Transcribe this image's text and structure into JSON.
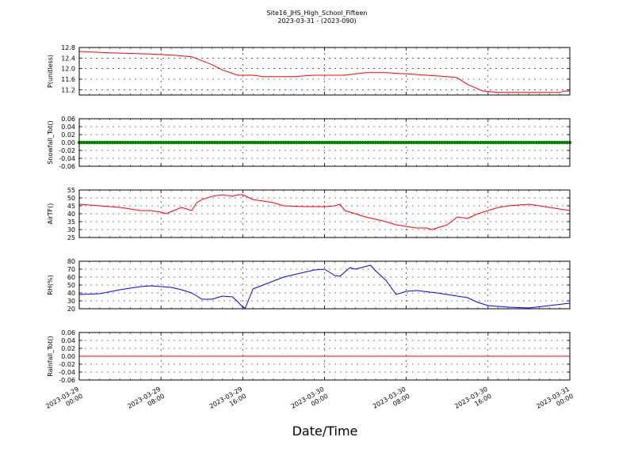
{
  "figure": {
    "title_line1": "Site16_JHS_High_School_Fifteen",
    "title_line2": "2023-03-31 - (2023-090)",
    "xlabel": "Date/Time"
  },
  "x_axis": {
    "start": "2023-03-29 00:00",
    "end": "2023-03-31 00:00",
    "ticks": [
      {
        "value": "2023-03-29 00:00",
        "line1": "2023-03-29",
        "line2": "00:00"
      },
      {
        "value": "2023-03-29 08:00",
        "line1": "2023-03-29",
        "line2": "08:00"
      },
      {
        "value": "2023-03-29 16:00",
        "line1": "2023-03-29",
        "line2": "16:00"
      },
      {
        "value": "2023-03-30 00:00",
        "line1": "2023-03-30",
        "line2": "00:00"
      },
      {
        "value": "2023-03-30 08:00",
        "line1": "2023-03-30",
        "line2": "08:00"
      },
      {
        "value": "2023-03-30 16:00",
        "line1": "2023-03-30",
        "line2": "16:00"
      },
      {
        "value": "2023-03-31 00:00",
        "line1": "2023-03-31",
        "line2": "00:00"
      }
    ]
  },
  "chart_data": [
    {
      "type": "line",
      "ylabel": "P(unitless)",
      "ylim": [
        11.0,
        12.8
      ],
      "yticks": [
        11.2,
        11.6,
        12.0,
        12.4,
        12.8
      ],
      "tick_decimals": 1,
      "grid": true,
      "color": "#ff0000",
      "x": [
        "2023-03-29 00:00",
        "2023-03-29 03:00",
        "2023-03-29 07:00",
        "2023-03-29 09:30",
        "2023-03-29 11:00",
        "2023-03-29 12:00",
        "2023-03-29 13:00",
        "2023-03-29 14:00",
        "2023-03-29 15:30",
        "2023-03-29 17:00",
        "2023-03-29 18:00",
        "2023-03-29 21:00",
        "2023-03-29 23:00",
        "2023-03-30 02:00",
        "2023-03-30 04:00",
        "2023-03-30 06:00",
        "2023-03-30 08:00",
        "2023-03-30 10:00",
        "2023-03-30 12:00",
        "2023-03-30 13:00",
        "2023-03-30 14:00",
        "2023-03-30 15:30",
        "2023-03-30 17:00",
        "2023-03-30 20:00",
        "2023-03-30 23:00",
        "2023-03-30 23:30",
        "2023-03-31 00:00"
      ],
      "y": [
        12.65,
        12.6,
        12.55,
        12.5,
        12.45,
        12.3,
        12.15,
        11.95,
        11.75,
        11.75,
        11.7,
        11.7,
        11.75,
        11.75,
        11.85,
        11.85,
        11.8,
        11.75,
        11.7,
        11.65,
        11.4,
        11.15,
        11.1,
        11.1,
        11.1,
        11.15,
        11.15
      ]
    },
    {
      "type": "scatter",
      "ylabel": "Snowfall_Tot()",
      "ylim": [
        -0.06,
        0.06
      ],
      "yticks": [
        -0.06,
        -0.04,
        -0.02,
        0.0,
        0.02,
        0.04,
        0.06
      ],
      "tick_decimals": 2,
      "grid": true,
      "color": "#007f00",
      "constant_value": 0.0,
      "x_step_minutes": 15
    },
    {
      "type": "line",
      "ylabel": "AirTF()",
      "ylim": [
        25,
        55
      ],
      "yticks": [
        25,
        30,
        35,
        40,
        45,
        50,
        55
      ],
      "tick_decimals": 0,
      "grid": true,
      "color": "#ff0000",
      "x": [
        "2023-03-29 00:00",
        "2023-03-29 02:00",
        "2023-03-29 04:00",
        "2023-03-29 05:00",
        "2023-03-29 06:00",
        "2023-03-29 07:00",
        "2023-03-29 08:00",
        "2023-03-29 08:30",
        "2023-03-29 10:00",
        "2023-03-29 11:00",
        "2023-03-29 11:30",
        "2023-03-29 12:00",
        "2023-03-29 13:00",
        "2023-03-29 14:00",
        "2023-03-29 15:00",
        "2023-03-29 15:30",
        "2023-03-29 16:00",
        "2023-03-29 17:00",
        "2023-03-29 18:00",
        "2023-03-29 19:00",
        "2023-03-29 20:00",
        "2023-03-29 22:00",
        "2023-03-30 00:00",
        "2023-03-30 01:00",
        "2023-03-30 01:30",
        "2023-03-30 02:00",
        "2023-03-30 03:00",
        "2023-03-30 04:00",
        "2023-03-30 06:00",
        "2023-03-30 07:00",
        "2023-03-30 08:00",
        "2023-03-30 09:00",
        "2023-03-30 10:00",
        "2023-03-30 10:30",
        "2023-03-30 11:00",
        "2023-03-30 12:00",
        "2023-03-30 13:00",
        "2023-03-30 14:00",
        "2023-03-30 15:00",
        "2023-03-30 16:00",
        "2023-03-30 17:00",
        "2023-03-30 18:00",
        "2023-03-30 20:00",
        "2023-03-30 22:00",
        "2023-03-31 00:00"
      ],
      "y": [
        46,
        45,
        44,
        43,
        42,
        42,
        41,
        40,
        44,
        42,
        47,
        49,
        51,
        52,
        51,
        52,
        52,
        49,
        48,
        47,
        45,
        44.5,
        44.5,
        45,
        46,
        42,
        40,
        38,
        35,
        33,
        32,
        31,
        31,
        30,
        31,
        33,
        38,
        37,
        40,
        42,
        44,
        45,
        46,
        44,
        42
      ]
    },
    {
      "type": "line",
      "ylabel": "RH(%)",
      "ylim": [
        20,
        80
      ],
      "yticks": [
        20,
        30,
        40,
        50,
        60,
        70,
        80
      ],
      "tick_decimals": 0,
      "grid": true,
      "color": "#0000ff",
      "x": [
        "2023-03-29 00:00",
        "2023-03-29 02:00",
        "2023-03-29 04:00",
        "2023-03-29 05:00",
        "2023-03-29 06:00",
        "2023-03-29 07:00",
        "2023-03-29 08:00",
        "2023-03-29 09:00",
        "2023-03-29 10:00",
        "2023-03-29 11:00",
        "2023-03-29 12:00",
        "2023-03-29 13:00",
        "2023-03-29 14:00",
        "2023-03-29 15:00",
        "2023-03-29 15:30",
        "2023-03-29 16:00",
        "2023-03-29 16:15",
        "2023-03-29 17:00",
        "2023-03-29 18:00",
        "2023-03-29 19:00",
        "2023-03-29 20:00",
        "2023-03-29 21:00",
        "2023-03-29 22:00",
        "2023-03-29 23:00",
        "2023-03-30 00:00",
        "2023-03-30 01:00",
        "2023-03-30 01:30",
        "2023-03-30 02:30",
        "2023-03-30 03:00",
        "2023-03-30 04:30",
        "2023-03-30 05:00",
        "2023-03-30 05:30",
        "2023-03-30 06:00",
        "2023-03-30 07:00",
        "2023-03-30 08:00",
        "2023-03-30 09:00",
        "2023-03-30 11:00",
        "2023-03-30 12:00",
        "2023-03-30 13:00",
        "2023-03-30 14:00",
        "2023-03-30 15:00",
        "2023-03-30 16:00",
        "2023-03-30 18:00",
        "2023-03-30 20:00",
        "2023-03-30 22:00",
        "2023-03-31 00:00"
      ],
      "y": [
        38,
        39,
        44,
        46,
        48,
        49,
        48,
        47,
        44,
        40,
        32,
        32,
        36,
        35,
        29,
        22,
        21,
        45,
        50,
        55,
        60,
        63,
        66,
        69,
        70,
        62,
        61,
        72,
        70,
        75,
        68,
        62,
        56,
        38,
        42,
        43,
        40,
        38,
        36,
        34,
        28,
        24,
        22,
        21,
        24,
        27
      ]
    },
    {
      "type": "line",
      "ylabel": "Rainfall_Tot()",
      "ylim": [
        -0.06,
        0.06
      ],
      "yticks": [
        -0.06,
        -0.04,
        -0.02,
        0.0,
        0.02,
        0.04,
        0.06
      ],
      "tick_decimals": 2,
      "grid": true,
      "color": "#ff0000",
      "x": [
        "2023-03-29 00:00",
        "2023-03-31 00:00"
      ],
      "y": [
        0.0,
        0.0
      ]
    }
  ]
}
